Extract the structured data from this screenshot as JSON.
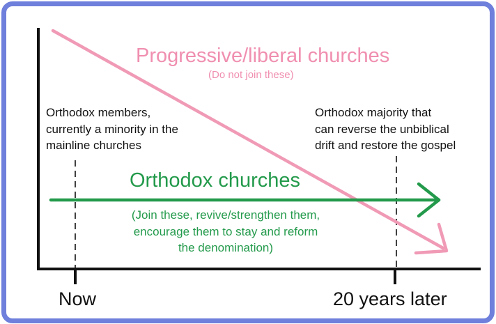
{
  "pink_title": "Progressive/liberal churches",
  "pink_subtitle": "(Do not join these)",
  "note_left": "Orthodox members,\ncurrently a minority in the\nmainline churches",
  "note_right": "Orthodox majority that\ncan reverse the unbiblical\ndrift and restore the gospel",
  "green_title": "Orthodox churches",
  "green_subtitle": "(Join these, revive/strengthen them,\nencourage them to stay and reform\nthe denomination)",
  "x_ticks": [
    "Now",
    "20 years later"
  ],
  "colors": {
    "frame": "#6f7fdc",
    "declining_arrow": "#f09ab6",
    "growth_arrow": "#239a4b",
    "axes": "#111111"
  }
}
